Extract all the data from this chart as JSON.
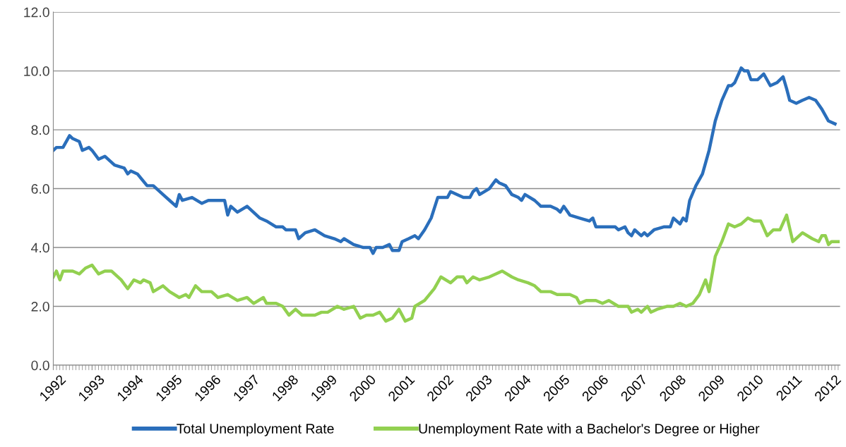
{
  "chart_data": {
    "type": "line",
    "xlim": [
      1992,
      2012.3
    ],
    "xticks": [
      1992,
      1993,
      1994,
      1995,
      1996,
      1997,
      1998,
      1999,
      2000,
      2001,
      2002,
      2003,
      2004,
      2005,
      2006,
      2007,
      2008,
      2009,
      2010,
      2011,
      2012
    ],
    "ylim": [
      0,
      12
    ],
    "yticks": [
      {
        "value": 0,
        "label": "0.0"
      },
      {
        "value": 2,
        "label": "2.0"
      },
      {
        "value": 4,
        "label": "4.0"
      },
      {
        "value": 6,
        "label": "6.0"
      },
      {
        "value": 8,
        "label": "8.0"
      },
      {
        "value": 10,
        "label": "10.0"
      },
      {
        "value": 12,
        "label": "12.0"
      }
    ],
    "grid": "y",
    "legend": "bottom",
    "marker": "none",
    "line_style": "solid",
    "series": [
      {
        "name": "Total Unemployment Rate",
        "color": "#2a6ebb",
        "x": [
          1992.0,
          1992.08,
          1992.25,
          1992.42,
          1992.5,
          1992.67,
          1992.75,
          1992.92,
          1993.0,
          1993.17,
          1993.33,
          1993.58,
          1993.83,
          1993.92,
          1994.0,
          1994.17,
          1994.42,
          1994.58,
          1994.83,
          1995.0,
          1995.17,
          1995.25,
          1995.33,
          1995.58,
          1995.83,
          1996.0,
          1996.25,
          1996.42,
          1996.5,
          1996.58,
          1996.75,
          1997.0,
          1997.33,
          1997.5,
          1997.75,
          1997.92,
          1998.0,
          1998.25,
          1998.33,
          1998.5,
          1998.75,
          1999.0,
          1999.25,
          1999.42,
          1999.5,
          1999.75,
          2000.0,
          2000.17,
          2000.25,
          2000.33,
          2000.5,
          2000.67,
          2000.75,
          2000.92,
          2001.0,
          2001.17,
          2001.33,
          2001.42,
          2001.58,
          2001.75,
          2001.92,
          2002.17,
          2002.25,
          2002.58,
          2002.75,
          2002.83,
          2002.92,
          2003.0,
          2003.25,
          2003.42,
          2003.5,
          2003.67,
          2003.83,
          2004.0,
          2004.08,
          2004.17,
          2004.42,
          2004.58,
          2004.83,
          2005.0,
          2005.08,
          2005.17,
          2005.33,
          2005.58,
          2005.83,
          2005.92,
          2006.0,
          2006.25,
          2006.5,
          2006.58,
          2006.75,
          2006.83,
          2006.92,
          2007.0,
          2007.17,
          2007.25,
          2007.33,
          2007.5,
          2007.75,
          2007.92,
          2008.0,
          2008.17,
          2008.25,
          2008.33,
          2008.42,
          2008.58,
          2008.75,
          2008.92,
          2009.08,
          2009.25,
          2009.42,
          2009.5,
          2009.58,
          2009.75,
          2009.83,
          2009.92,
          2010.0,
          2010.17,
          2010.33,
          2010.5,
          2010.67,
          2010.83,
          2010.92,
          2011.0,
          2011.17,
          2011.33,
          2011.5,
          2011.67,
          2011.83,
          2012.0,
          2012.17
        ],
        "values": [
          7.3,
          7.4,
          7.4,
          7.8,
          7.7,
          7.6,
          7.3,
          7.4,
          7.3,
          7.0,
          7.1,
          6.8,
          6.7,
          6.5,
          6.6,
          6.5,
          6.1,
          6.1,
          5.8,
          5.6,
          5.4,
          5.8,
          5.6,
          5.7,
          5.5,
          5.6,
          5.6,
          5.6,
          5.1,
          5.4,
          5.2,
          5.4,
          5.0,
          4.9,
          4.7,
          4.7,
          4.6,
          4.6,
          4.3,
          4.5,
          4.6,
          4.4,
          4.3,
          4.2,
          4.3,
          4.1,
          4.0,
          4.0,
          3.8,
          4.0,
          4.0,
          4.1,
          3.9,
          3.9,
          4.2,
          4.3,
          4.4,
          4.3,
          4.6,
          5.0,
          5.7,
          5.7,
          5.9,
          5.7,
          5.7,
          5.9,
          6.0,
          5.8,
          6.0,
          6.3,
          6.2,
          6.1,
          5.8,
          5.7,
          5.6,
          5.8,
          5.6,
          5.4,
          5.4,
          5.3,
          5.2,
          5.4,
          5.1,
          5.0,
          4.9,
          5.0,
          4.7,
          4.7,
          4.7,
          4.6,
          4.7,
          4.5,
          4.4,
          4.6,
          4.4,
          4.5,
          4.4,
          4.6,
          4.7,
          4.7,
          5.0,
          4.8,
          5.0,
          4.9,
          5.6,
          6.1,
          6.5,
          7.3,
          8.3,
          9.0,
          9.5,
          9.5,
          9.6,
          10.1,
          10.0,
          10.0,
          9.7,
          9.7,
          9.9,
          9.5,
          9.6,
          9.8,
          9.4,
          9.0,
          8.9,
          9.0,
          9.1,
          9.0,
          8.7,
          8.3,
          8.2
        ]
      },
      {
        "name": "Unemployment Rate with a Bachelor's Degree or Higher",
        "color": "#92d050",
        "x": [
          1992.0,
          1992.08,
          1992.17,
          1992.25,
          1992.5,
          1992.67,
          1992.83,
          1993.0,
          1993.17,
          1993.33,
          1993.5,
          1993.75,
          1993.92,
          1994.08,
          1994.25,
          1994.33,
          1994.5,
          1994.58,
          1994.83,
          1995.0,
          1995.25,
          1995.42,
          1995.5,
          1995.67,
          1995.83,
          1996.08,
          1996.25,
          1996.5,
          1996.75,
          1997.0,
          1997.17,
          1997.42,
          1997.5,
          1997.75,
          1997.92,
          1998.08,
          1998.25,
          1998.42,
          1998.75,
          1998.92,
          1999.08,
          1999.33,
          1999.5,
          1999.75,
          1999.92,
          2000.08,
          2000.25,
          2000.42,
          2000.58,
          2000.75,
          2000.92,
          2001.08,
          2001.25,
          2001.33,
          2001.58,
          2001.83,
          2002.0,
          2002.25,
          2002.42,
          2002.58,
          2002.67,
          2002.83,
          2003.0,
          2003.25,
          2003.42,
          2003.58,
          2003.83,
          2004.0,
          2004.25,
          2004.42,
          2004.58,
          2004.83,
          2005.0,
          2005.33,
          2005.5,
          2005.58,
          2005.75,
          2006.0,
          2006.17,
          2006.33,
          2006.58,
          2006.83,
          2006.92,
          2007.08,
          2007.17,
          2007.33,
          2007.42,
          2007.58,
          2007.83,
          2008.0,
          2008.17,
          2008.33,
          2008.5,
          2008.67,
          2008.83,
          2008.92,
          2009.08,
          2009.25,
          2009.42,
          2009.58,
          2009.75,
          2009.92,
          2010.08,
          2010.25,
          2010.42,
          2010.58,
          2010.75,
          2010.92,
          2011.08,
          2011.33,
          2011.58,
          2011.75,
          2011.83,
          2011.92,
          2012.0,
          2012.08,
          2012.25
        ],
        "values": [
          3.0,
          3.2,
          2.9,
          3.2,
          3.2,
          3.1,
          3.3,
          3.4,
          3.1,
          3.2,
          3.2,
          2.9,
          2.6,
          2.9,
          2.8,
          2.9,
          2.8,
          2.5,
          2.7,
          2.5,
          2.3,
          2.4,
          2.3,
          2.7,
          2.5,
          2.5,
          2.3,
          2.4,
          2.2,
          2.3,
          2.1,
          2.3,
          2.1,
          2.1,
          2.0,
          1.7,
          1.9,
          1.7,
          1.7,
          1.8,
          1.8,
          2.0,
          1.9,
          2.0,
          1.6,
          1.7,
          1.7,
          1.8,
          1.5,
          1.6,
          1.9,
          1.5,
          1.6,
          2.0,
          2.2,
          2.6,
          3.0,
          2.8,
          3.0,
          3.0,
          2.8,
          3.0,
          2.9,
          3.0,
          3.1,
          3.2,
          3.0,
          2.9,
          2.8,
          2.7,
          2.5,
          2.5,
          2.4,
          2.4,
          2.3,
          2.1,
          2.2,
          2.2,
          2.1,
          2.2,
          2.0,
          2.0,
          1.8,
          1.9,
          1.8,
          2.0,
          1.8,
          1.9,
          2.0,
          2.0,
          2.1,
          2.0,
          2.1,
          2.4,
          2.9,
          2.5,
          3.7,
          4.2,
          4.8,
          4.7,
          4.8,
          5.0,
          4.9,
          4.9,
          4.4,
          4.6,
          4.6,
          5.1,
          4.2,
          4.5,
          4.3,
          4.2,
          4.4,
          4.4,
          4.1,
          4.2,
          4.2
        ]
      }
    ]
  }
}
